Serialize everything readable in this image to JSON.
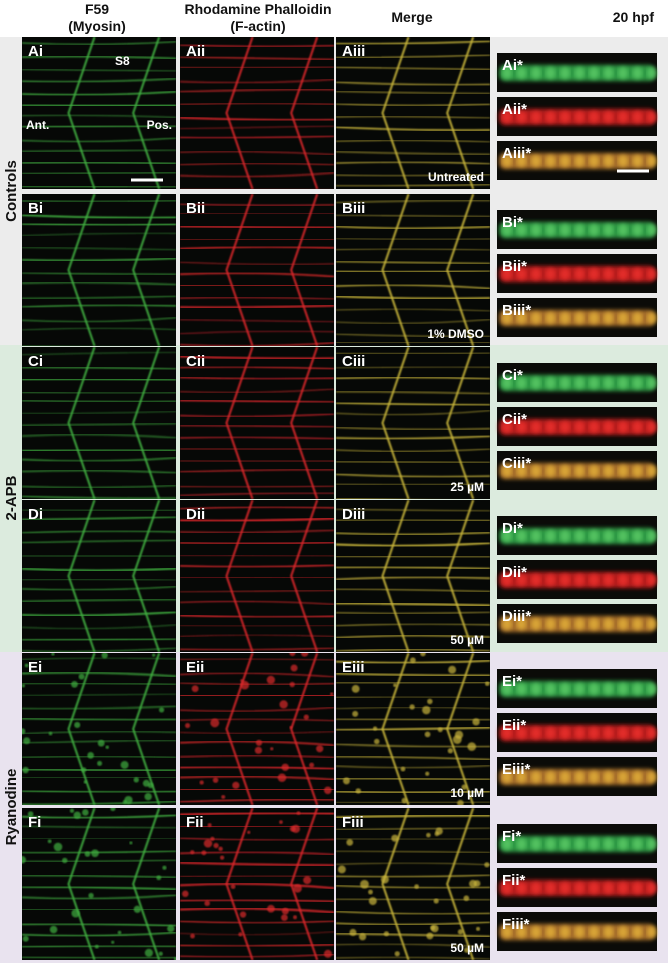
{
  "column_headers": [
    [
      "F59",
      "(Myosin)"
    ],
    [
      "Rhodamine Phalloidin",
      "(F-actin)"
    ],
    [
      "Merge"
    ]
  ],
  "stage": "20 hpf",
  "groups": [
    "Controls",
    "2-APB",
    "Ryanodine"
  ],
  "rows": [
    {
      "panels": [
        "Ai",
        "Aii",
        "Aiii"
      ],
      "treatment": "Untreated",
      "zoom": [
        "Ai*",
        "Aii*",
        "Aiii*"
      ],
      "annotations": [
        "S8",
        "Ant.",
        "Pos."
      ]
    },
    {
      "panels": [
        "Bi",
        "Bii",
        "Biii"
      ],
      "treatment": "1% DMSO",
      "zoom": [
        "Bi*",
        "Bii*",
        "Biii*"
      ]
    },
    {
      "panels": [
        "Ci",
        "Cii",
        "Ciii"
      ],
      "treatment": "25 µM",
      "zoom": [
        "Ci*",
        "Cii*",
        "Ciii*"
      ]
    },
    {
      "panels": [
        "Di",
        "Dii",
        "Diii"
      ],
      "treatment": "50 µM",
      "zoom": [
        "Di*",
        "Dii*",
        "Diii*"
      ]
    },
    {
      "panels": [
        "Ei",
        "Eii",
        "Eiii"
      ],
      "treatment": "10 µM",
      "zoom": [
        "Ei*",
        "Eii*",
        "Eiii*"
      ]
    },
    {
      "panels": [
        "Fi",
        "Fii",
        "Fiii"
      ],
      "treatment": "50 µM",
      "zoom": [
        "Fi*",
        "Fii*",
        "Fiii*"
      ]
    }
  ]
}
